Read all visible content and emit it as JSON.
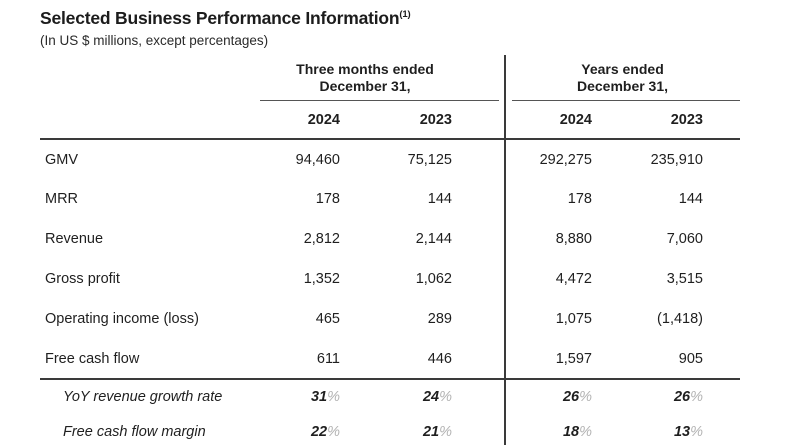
{
  "title": {
    "text": "Selected Business Performance Information",
    "footnote": "(1)"
  },
  "subtitle": "(In US $ millions, except percentages)",
  "table": {
    "groups": [
      {
        "label": "Three months ended\nDecember 31,"
      },
      {
        "label": "Years ended\nDecember 31,"
      }
    ],
    "year_headers": [
      "2024",
      "2023",
      "2024",
      "2023"
    ],
    "rows": [
      {
        "label": "GMV",
        "values": [
          "94,460",
          "75,125",
          "292,275",
          "235,910"
        ]
      },
      {
        "label": "MRR",
        "values": [
          "178",
          "144",
          "178",
          "144"
        ]
      },
      {
        "label": "Revenue",
        "values": [
          "2,812",
          "2,144",
          "8,880",
          "7,060"
        ]
      },
      {
        "label": "Gross profit",
        "values": [
          "1,352",
          "1,062",
          "4,472",
          "3,515"
        ]
      },
      {
        "label": "Operating income (loss)",
        "values": [
          "465",
          "289",
          "1,075",
          "(1,418)"
        ]
      },
      {
        "label": "Free cash flow",
        "values": [
          "611",
          "446",
          "1,597",
          "905"
        ]
      }
    ],
    "percent_rows": [
      {
        "label": "YoY revenue growth rate",
        "values": [
          "31",
          "24",
          "26",
          "26"
        ],
        "suffix": "%"
      },
      {
        "label": "Free cash flow margin",
        "values": [
          "22",
          "21",
          "18",
          "13"
        ],
        "suffix": "%"
      }
    ]
  },
  "colors": {
    "text": "#1f1f1f",
    "percent_sign_muted": "#b3b3b3",
    "line_heavy": "#3a3a3a",
    "line_light": "#555555",
    "background": "#ffffff"
  }
}
